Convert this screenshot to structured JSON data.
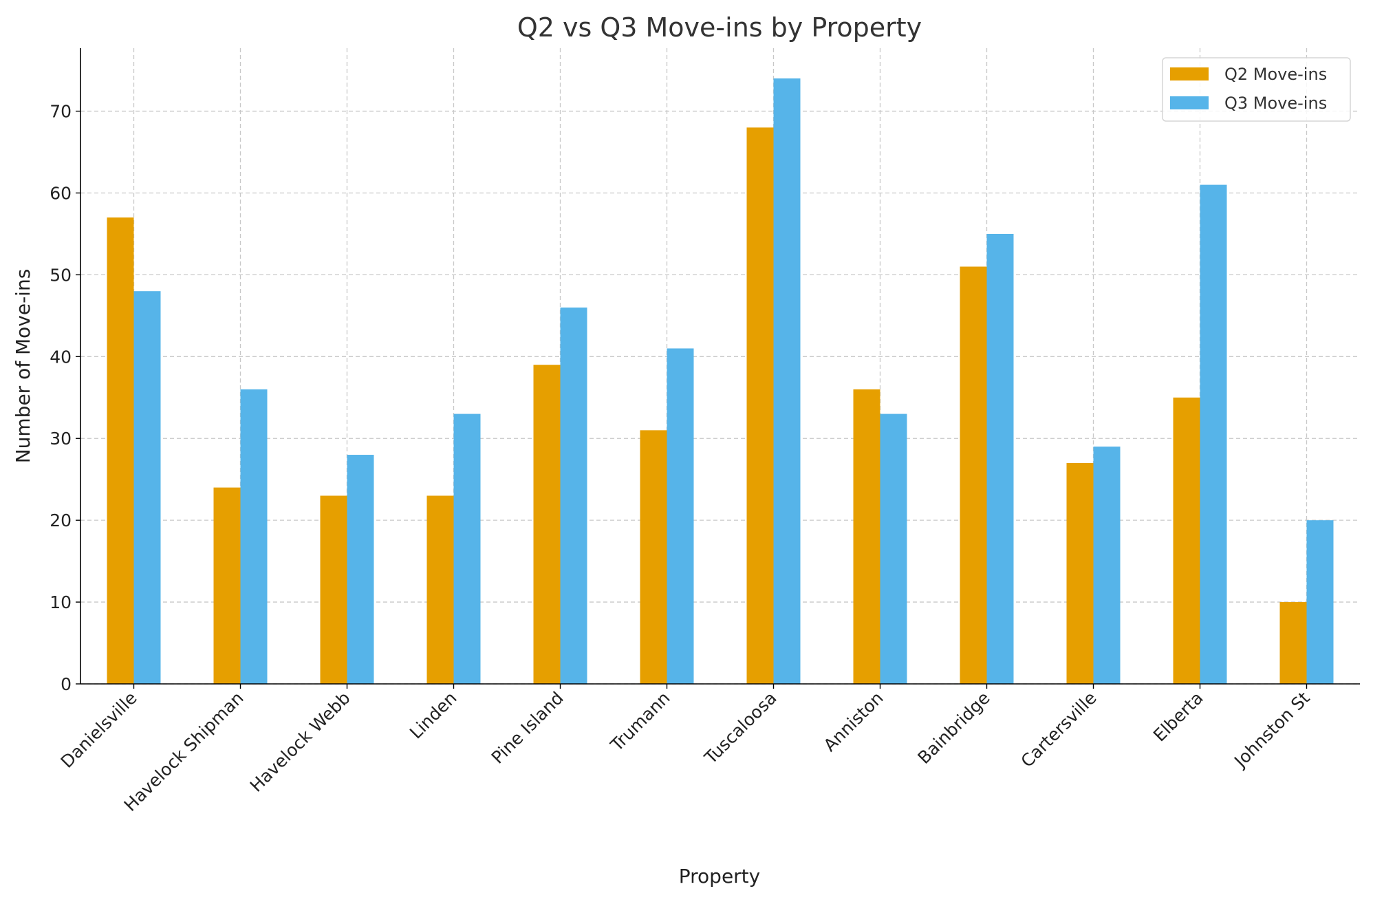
{
  "chart_data": {
    "type": "bar",
    "title": "Q2 vs Q3 Move-ins by Property",
    "xlabel": "Property",
    "ylabel": "Number of Move-ins",
    "categories": [
      "Danielsville",
      "Havelock Shipman",
      "Havelock Webb",
      "Linden",
      "Pine Island",
      "Trumann",
      "Tuscaloosa",
      "Anniston",
      "Bainbridge",
      "Cartersville",
      "Elberta",
      "Johnston St"
    ],
    "series": [
      {
        "name": "Q2 Move-ins",
        "color": "#E69F00",
        "values": [
          57,
          24,
          23,
          23,
          39,
          31,
          68,
          36,
          51,
          27,
          35,
          10
        ]
      },
      {
        "name": "Q3 Move-ins",
        "color": "#56B4E9",
        "values": [
          48,
          36,
          28,
          33,
          46,
          41,
          74,
          33,
          55,
          29,
          61,
          20
        ]
      }
    ],
    "ylim": [
      0,
      77.7
    ],
    "yticks": [
      0,
      10,
      20,
      30,
      40,
      50,
      60,
      70
    ],
    "grid": true,
    "legend": "top-right"
  }
}
